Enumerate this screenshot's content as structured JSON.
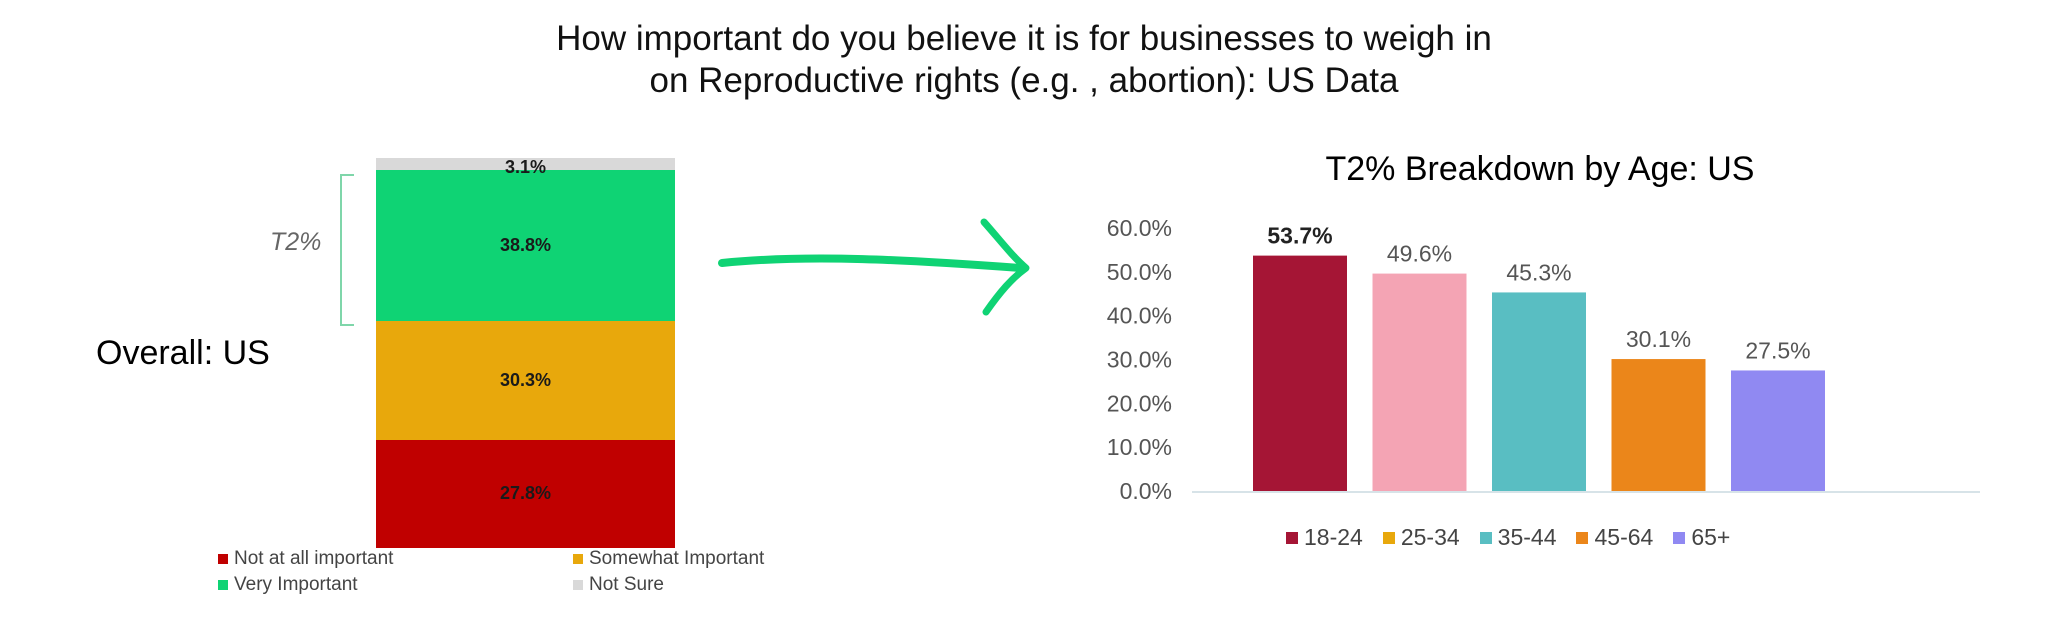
{
  "title_lines": [
    "How important do you believe it is for businesses to weigh in",
    "on Reproductive rights (e.g. , abortion): US Data"
  ],
  "overall_label": "Overall: US",
  "t2_label": "T2%",
  "chart_data": [
    {
      "type": "bar",
      "subtype": "stacked-100",
      "title": "",
      "categories": [
        "Overall: US"
      ],
      "series": [
        {
          "name": "Not at all important",
          "values": [
            27.8
          ],
          "label": "27.8%",
          "color": "#c00000"
        },
        {
          "name": "Somewhat Important",
          "values": [
            30.3
          ],
          "label": "30.3%",
          "color": "#e8a80c"
        },
        {
          "name": "Very Important",
          "values": [
            38.8
          ],
          "label": "38.8%",
          "color": "#0fd374"
        },
        {
          "name": "Not Sure",
          "values": [
            3.1
          ],
          "label": "3.1%",
          "color": "#d9d9d9"
        }
      ],
      "ylim": [
        0,
        100
      ],
      "legend": "bottom"
    },
    {
      "type": "bar",
      "title": "T2% Breakdown by Age: US",
      "categories": [
        "18-24",
        "25-34",
        "35-44",
        "45-64",
        "65+"
      ],
      "values": [
        53.7,
        49.6,
        45.3,
        30.1,
        27.5
      ],
      "value_labels": [
        "53.7%",
        "49.6%",
        "45.3%",
        "30.1%",
        "27.5%"
      ],
      "colors": [
        "#a51535",
        "#f4a4b4",
        "#59bec2",
        "#eb861a",
        "#9089f2"
      ],
      "legend_colors": [
        "#a51535",
        "#e8a80c",
        "#59bec2",
        "#eb861a",
        "#9089f2"
      ],
      "ylim": [
        0,
        60
      ],
      "yticks": [
        0,
        10,
        20,
        30,
        40,
        50,
        60
      ],
      "ytick_labels": [
        "0.0%",
        "10.0%",
        "20.0%",
        "30.0%",
        "40.0%",
        "50.0%",
        "60.0%"
      ],
      "legend": "bottom",
      "grid": false
    }
  ]
}
